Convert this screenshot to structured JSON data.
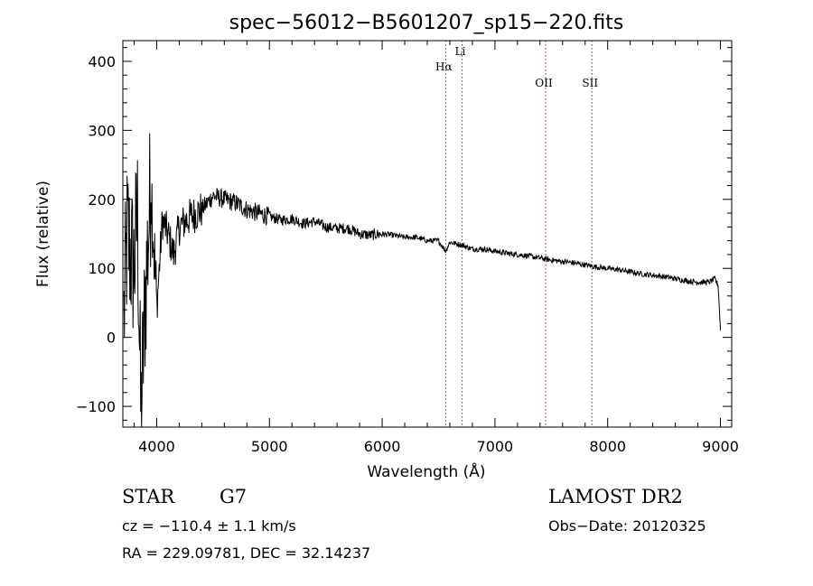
{
  "chart_data": {
    "type": "line",
    "title": "spec−56012−B5601207_sp15−220.fits",
    "xlabel": "Wavelength (Å)",
    "ylabel": "Flux (relative)",
    "xlim": [
      3700,
      9100
    ],
    "ylim": [
      -130,
      430
    ],
    "xticks": [
      4000,
      5000,
      6000,
      7000,
      8000,
      9000
    ],
    "yticks": [
      -100,
      0,
      100,
      200,
      300,
      400
    ],
    "ytick_labels": [
      "−100",
      "0",
      "100",
      "200",
      "300",
      "400"
    ],
    "grid": false,
    "series": [
      {
        "x": [
          3710,
          3740,
          3770,
          3800,
          3830,
          3860,
          3900,
          3950,
          4000,
          4050,
          4100,
          4150,
          4200,
          4300,
          4400,
          4500,
          4600,
          4700,
          4800,
          4900,
          5000,
          5100,
          5200,
          5300,
          5400,
          5500,
          5600,
          5700,
          5800,
          5900,
          6000,
          6100,
          6200,
          6300,
          6400,
          6500,
          6563,
          6600,
          6700,
          6800,
          6900,
          7000,
          7100,
          7200,
          7300,
          7400,
          7500,
          7600,
          7700,
          7800,
          7900,
          8000,
          8100,
          8200,
          8300,
          8400,
          8500,
          8600,
          8700,
          8800,
          8900,
          8950,
          8980,
          9000
        ],
        "y": [
          30,
          150,
          120,
          100,
          180,
          -120,
          60,
          230,
          40,
          170,
          150,
          120,
          160,
          175,
          185,
          205,
          200,
          195,
          185,
          180,
          175,
          170,
          172,
          165,
          168,
          160,
          158,
          158,
          150,
          148,
          150,
          148,
          145,
          145,
          140,
          140,
          125,
          138,
          134,
          128,
          128,
          125,
          122,
          120,
          118,
          115,
          112,
          110,
          108,
          105,
          102,
          100,
          98,
          95,
          92,
          90,
          88,
          85,
          82,
          80,
          80,
          85,
          75,
          10
        ]
      }
    ],
    "annotations": [
      {
        "label": "Hα",
        "x": 6563
      },
      {
        "label": "Li",
        "x": 6708
      },
      {
        "label": "OII",
        "x": 7450
      },
      {
        "label": "SII",
        "x": 7860
      }
    ]
  },
  "info": {
    "object_type": "STAR",
    "subclass": "G7",
    "survey": "LAMOST DR2",
    "cz": "cz = −110.4 ± 1.1 km/s",
    "obs_date": "Obs−Date: 20120325",
    "coords": "RA = 229.09781, DEC =  32.14237"
  }
}
